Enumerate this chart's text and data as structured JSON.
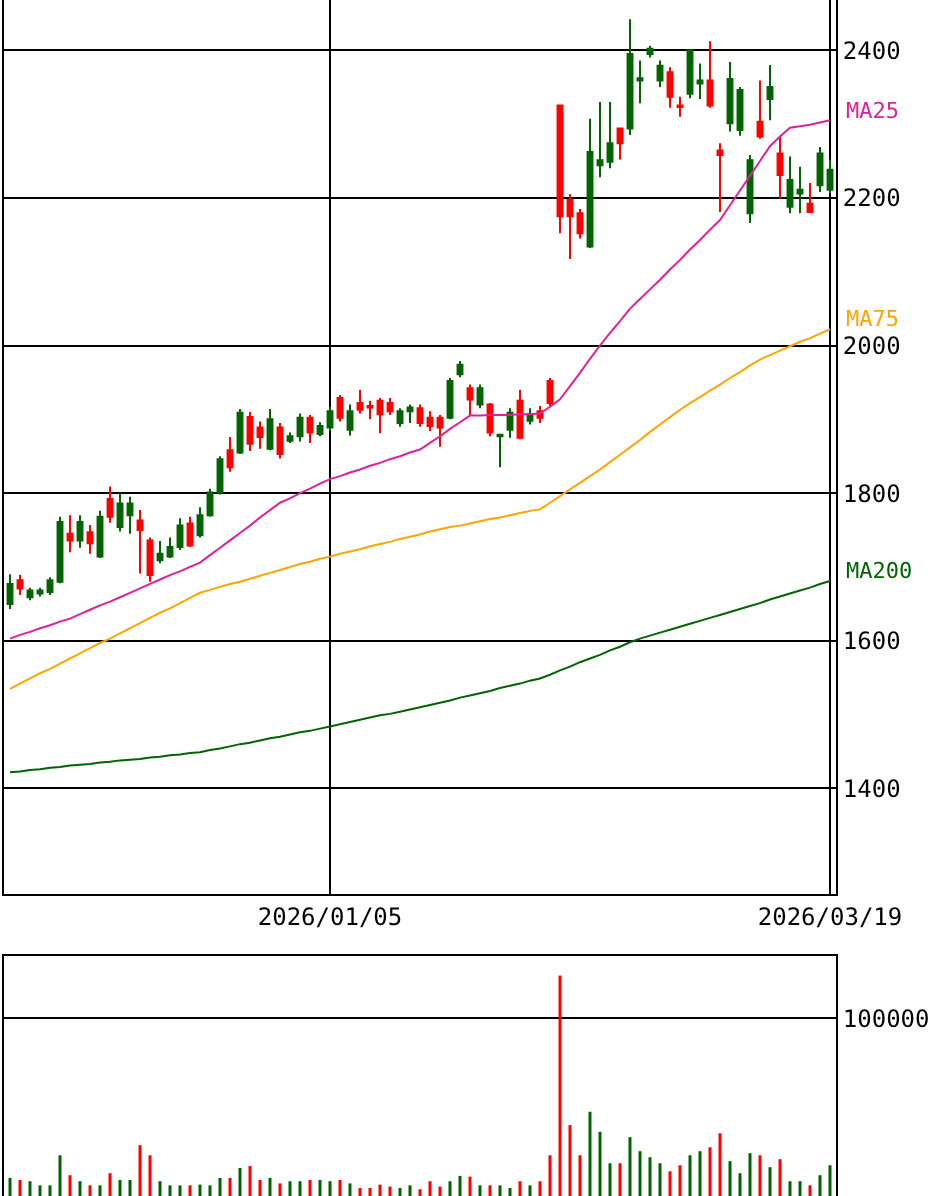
{
  "chart_data": [
    {
      "type": "candlestick",
      "categories": [
        null,
        null,
        null,
        null,
        null,
        null,
        null,
        null,
        null,
        null,
        null,
        null,
        null,
        null,
        null,
        null,
        null,
        null,
        null,
        null,
        null,
        null,
        null,
        null,
        null,
        null,
        null,
        null,
        null,
        null,
        null,
        null,
        "2026/01/05",
        null,
        null,
        null,
        null,
        null,
        null,
        null,
        null,
        null,
        null,
        null,
        null,
        null,
        null,
        null,
        null,
        null,
        null,
        null,
        null,
        null,
        null,
        null,
        null,
        null,
        null,
        null,
        null,
        null,
        null,
        null,
        null,
        null,
        null,
        null,
        null,
        null,
        null,
        null,
        null,
        null,
        null,
        null,
        null,
        null,
        null,
        null,
        null,
        null,
        "2026/03/19"
      ],
      "ohlc": [
        [
          1650,
          1690,
          1643,
          1677
        ],
        [
          1682,
          1689,
          1662,
          1671
        ],
        [
          1659,
          1672,
          1655,
          1668
        ],
        [
          1664,
          1672,
          1660,
          1668
        ],
        [
          1666,
          1686,
          1662,
          1682
        ],
        [
          1680,
          1768,
          1678,
          1761
        ],
        [
          1745,
          1770,
          1720,
          1736
        ],
        [
          1736,
          1770,
          1726,
          1761
        ],
        [
          1747,
          1757,
          1718,
          1732
        ],
        [
          1714,
          1776,
          1712,
          1768
        ],
        [
          1792,
          1809,
          1760,
          1768
        ],
        [
          1754,
          1800,
          1748,
          1786
        ],
        [
          1770,
          1795,
          1745,
          1786
        ],
        [
          1763,
          1777,
          1691,
          1750
        ],
        [
          1736,
          1740,
          1680,
          1689
        ],
        [
          1709,
          1735,
          1705,
          1718
        ],
        [
          1714,
          1740,
          1712,
          1727
        ],
        [
          1727,
          1766,
          1723,
          1756
        ],
        [
          1759,
          1768,
          1727,
          1729
        ],
        [
          1743,
          1781,
          1740,
          1770
        ],
        [
          1770,
          1806,
          1768,
          1801
        ],
        [
          1801,
          1850,
          1798,
          1846
        ],
        [
          1858,
          1876,
          1829,
          1835
        ],
        [
          1855,
          1914,
          1853,
          1909
        ],
        [
          1903,
          1910,
          1857,
          1867
        ],
        [
          1889,
          1897,
          1860,
          1876
        ],
        [
          1860,
          1914,
          1858,
          1900
        ],
        [
          1889,
          1895,
          1847,
          1853
        ],
        [
          1871,
          1882,
          1868,
          1877
        ],
        [
          1877,
          1908,
          1870,
          1902
        ],
        [
          1902,
          1906,
          1868,
          1882
        ],
        [
          1880,
          1896,
          1877,
          1891
        ],
        [
          1889,
          1917,
          1884,
          1911
        ],
        [
          1929,
          1933,
          1897,
          1902
        ],
        [
          1886,
          1920,
          1878,
          1911
        ],
        [
          1922,
          1940,
          1908,
          1913
        ],
        [
          1918,
          1925,
          1900,
          1916
        ],
        [
          1925,
          1929,
          1881,
          1907
        ],
        [
          1922,
          1929,
          1906,
          1911
        ],
        [
          1895,
          1915,
          1890,
          1911
        ],
        [
          1911,
          1920,
          1895,
          1916
        ],
        [
          1915,
          1920,
          1890,
          1895
        ],
        [
          1902,
          1911,
          1884,
          1891
        ],
        [
          1902,
          1906,
          1863,
          1889
        ],
        [
          1902,
          1956,
          1900,
          1952
        ],
        [
          1961,
          1979,
          1957,
          1974
        ],
        [
          1942,
          1947,
          1906,
          1927
        ],
        [
          1920,
          1947,
          1915,
          1942
        ],
        [
          1920,
          1922,
          1877,
          1882
        ],
        [
          1877,
          1880,
          1835,
          1879
        ],
        [
          1886,
          1915,
          1875,
          1909
        ],
        [
          1925,
          1940,
          1873,
          1875
        ],
        [
          1898,
          1915,
          1893,
          1907
        ],
        [
          1911,
          1918,
          1895,
          1902
        ],
        [
          1952,
          1956,
          1918,
          1922
        ],
        [
          2325,
          2325,
          2152,
          2175
        ],
        [
          2197,
          2205,
          2117,
          2175
        ],
        [
          2179,
          2185,
          2145,
          2152
        ],
        [
          2134,
          2307,
          2132,
          2262
        ],
        [
          2244,
          2330,
          2228,
          2251
        ],
        [
          2249,
          2330,
          2240,
          2274
        ],
        [
          2294,
          2294,
          2252,
          2274
        ],
        [
          2294,
          2442,
          2285,
          2395
        ],
        [
          2359,
          2386,
          2328,
          2362
        ],
        [
          2395,
          2406,
          2390,
          2402
        ],
        [
          2359,
          2386,
          2350,
          2379
        ],
        [
          2370,
          2377,
          2322,
          2337
        ],
        [
          2325,
          2337,
          2310,
          2323
        ],
        [
          2341,
          2400,
          2335,
          2400
        ],
        [
          2355,
          2382,
          2334,
          2359
        ],
        [
          2359,
          2412,
          2322,
          2325
        ],
        [
          2264,
          2274,
          2181,
          2258
        ],
        [
          2301,
          2384,
          2290,
          2361
        ],
        [
          2292,
          2350,
          2284,
          2346
        ],
        [
          2179,
          2258,
          2166,
          2251
        ],
        [
          2303,
          2359,
          2280,
          2283
        ],
        [
          2334,
          2380,
          2305,
          2350
        ],
        [
          2260,
          2283,
          2199,
          2231
        ],
        [
          2188,
          2256,
          2179,
          2224
        ],
        [
          2206,
          2242,
          2179,
          2211
        ],
        [
          2192,
          2220,
          2181,
          2181
        ],
        [
          2217,
          2269,
          2208,
          2260
        ],
        [
          2211,
          2252,
          2206,
          2238
        ]
      ],
      "series": [
        {
          "type": "line",
          "name": "MA25",
          "color": "#e0209a",
          "values": [
            1603,
            1608,
            1612,
            1617,
            1621,
            1626,
            1630,
            1636,
            1642,
            1648,
            1653,
            1659,
            1665,
            1671,
            1677,
            1683,
            1689,
            1694,
            1700,
            1706,
            1716,
            1726,
            1736,
            1746,
            1756,
            1767,
            1777,
            1787,
            1793,
            1800,
            1806,
            1813,
            1819,
            1823,
            1828,
            1832,
            1837,
            1841,
            1846,
            1850,
            1855,
            1859,
            1868,
            1877,
            1887,
            1896,
            1905,
            1905,
            1906,
            1906,
            1906,
            1907,
            1907,
            1908,
            1917,
            1927,
            1945,
            1963,
            1982,
            2000,
            2017,
            2033,
            2050,
            2063,
            2076,
            2089,
            2103,
            2116,
            2130,
            2143,
            2157,
            2170,
            2190,
            2210,
            2230,
            2250,
            2270,
            2283,
            2295,
            2297,
            2299,
            2302,
            2305
          ]
        },
        {
          "type": "line",
          "name": "MA75",
          "color": "#ffa500",
          "values": [
            1535,
            1542,
            1549,
            1556,
            1562,
            1569,
            1576,
            1583,
            1590,
            1597,
            1603,
            1610,
            1617,
            1624,
            1631,
            1638,
            1644,
            1651,
            1658,
            1665,
            1669,
            1673,
            1677,
            1680,
            1684,
            1688,
            1692,
            1696,
            1700,
            1704,
            1707,
            1711,
            1714,
            1718,
            1721,
            1724,
            1728,
            1731,
            1734,
            1738,
            1741,
            1744,
            1748,
            1751,
            1754,
            1756,
            1759,
            1762,
            1765,
            1767,
            1770,
            1773,
            1776,
            1778,
            1787,
            1796,
            1805,
            1814,
            1823,
            1832,
            1842,
            1852,
            1862,
            1872,
            1883,
            1893,
            1903,
            1913,
            1922,
            1930,
            1939,
            1947,
            1956,
            1964,
            1973,
            1981,
            1987,
            1993,
            1999,
            2005,
            2010,
            2016,
            2022
          ]
        },
        {
          "type": "line",
          "name": "MA200",
          "color": "#006400",
          "values": [
            1422,
            1423,
            1425,
            1426,
            1428,
            1429,
            1431,
            1432,
            1433,
            1435,
            1436,
            1438,
            1439,
            1440,
            1442,
            1443,
            1445,
            1446,
            1448,
            1449,
            1452,
            1454,
            1457,
            1460,
            1462,
            1465,
            1468,
            1470,
            1473,
            1476,
            1478,
            1481,
            1484,
            1487,
            1490,
            1493,
            1496,
            1499,
            1501,
            1504,
            1507,
            1510,
            1513,
            1516,
            1519,
            1523,
            1526,
            1529,
            1532,
            1536,
            1539,
            1542,
            1546,
            1549,
            1554,
            1560,
            1565,
            1571,
            1576,
            1581,
            1587,
            1592,
            1598,
            1603,
            1607,
            1611,
            1615,
            1619,
            1623,
            1627,
            1631,
            1635,
            1639,
            1643,
            1647,
            1651,
            1656,
            1660,
            1664,
            1668,
            1672,
            1677,
            1681
          ]
        }
      ],
      "ylim": [
        1257,
        2468
      ],
      "yticks": [
        1400,
        1600,
        1800,
        2000,
        2200,
        2400
      ],
      "grid": true,
      "legend": false
    },
    {
      "type": "bar",
      "categories": [
        null,
        null,
        null,
        null,
        null,
        null,
        null,
        null,
        null,
        null,
        null,
        null,
        null,
        null,
        null,
        null,
        null,
        null,
        null,
        null,
        null,
        null,
        null,
        null,
        null,
        null,
        null,
        null,
        null,
        null,
        null,
        null,
        null,
        null,
        null,
        null,
        null,
        null,
        null,
        null,
        null,
        null,
        null,
        null,
        null,
        null,
        null,
        null,
        null,
        null,
        null,
        null,
        null,
        null,
        null,
        null,
        null,
        null,
        null,
        null,
        null,
        null,
        null,
        null,
        null,
        null,
        null,
        null,
        null,
        null,
        null,
        null,
        null,
        null,
        null,
        null,
        null,
        null,
        null,
        null,
        null,
        null,
        null
      ],
      "values": [
        10150,
        9000,
        8300,
        6000,
        6000,
        22900,
        11700,
        8300,
        6000,
        6000,
        12800,
        9000,
        9000,
        28600,
        22900,
        8300,
        6000,
        6000,
        6000,
        6400,
        6000,
        10150,
        10150,
        15800,
        16900,
        9000,
        10150,
        7100,
        8300,
        8300,
        9000,
        9000,
        8300,
        9000,
        7100,
        4500,
        4500,
        6400,
        5300,
        4500,
        6000,
        3800,
        8300,
        5300,
        8300,
        11300,
        10900,
        6000,
        6000,
        6000,
        4500,
        8300,
        6000,
        8300,
        22900,
        124000,
        39900,
        22900,
        47400,
        36100,
        18400,
        18400,
        33100,
        25200,
        21800,
        18400,
        13900,
        17300,
        22900,
        25200,
        27400,
        35300,
        19600,
        12800,
        24100,
        22900,
        16200,
        20700,
        8300,
        8300,
        6000,
        11700,
        17300
      ],
      "colors": [
        "#006400",
        "#ff0000",
        "#006400",
        "#006400",
        "#006400",
        "#006400",
        "#ff0000",
        "#006400",
        "#ff0000",
        "#006400",
        "#ff0000",
        "#006400",
        "#006400",
        "#ff0000",
        "#ff0000",
        "#006400",
        "#006400",
        "#006400",
        "#ff0000",
        "#006400",
        "#006400",
        "#006400",
        "#ff0000",
        "#006400",
        "#ff0000",
        "#ff0000",
        "#006400",
        "#ff0000",
        "#006400",
        "#006400",
        "#ff0000",
        "#006400",
        "#006400",
        "#ff0000",
        "#006400",
        "#ff0000",
        "#ff0000",
        "#ff0000",
        "#ff0000",
        "#006400",
        "#006400",
        "#ff0000",
        "#ff0000",
        "#ff0000",
        "#006400",
        "#006400",
        "#ff0000",
        "#006400",
        "#ff0000",
        "#006400",
        "#006400",
        "#ff0000",
        "#006400",
        "#ff0000",
        "#ff0000",
        "#ff0000",
        "#ff0000",
        "#ff0000",
        "#006400",
        "#006400",
        "#006400",
        "#ff0000",
        "#006400",
        "#006400",
        "#006400",
        "#006400",
        "#ff0000",
        "#ff0000",
        "#006400",
        "#006400",
        "#ff0000",
        "#ff0000",
        "#006400",
        "#006400",
        "#006400",
        "#ff0000",
        "#006400",
        "#ff0000",
        "#006400",
        "#006400",
        "#ff0000",
        "#006400",
        "#006400"
      ],
      "ylim": [
        0,
        135000
      ],
      "yticks": [
        100000
      ],
      "grid": "y",
      "tick_labels": "y",
      "legend": false
    }
  ]
}
